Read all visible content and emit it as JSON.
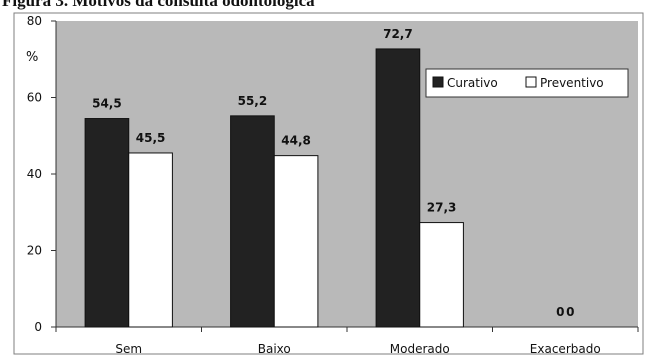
{
  "figure": {
    "title_bold": "Figura 3.",
    "title_rest": " Motivos da consulta odontológica"
  },
  "chart_data": {
    "type": "bar",
    "categories": [
      "Sem",
      "Baixo",
      "Moderado",
      "Exacerbado"
    ],
    "series": [
      {
        "name": "Curativo",
        "values": [
          54.5,
          55.2,
          72.7,
          0
        ],
        "labels": [
          "54,5",
          "55,2",
          "72,7",
          "0"
        ],
        "color": "#222222"
      },
      {
        "name": "Preventivo",
        "values": [
          45.5,
          44.8,
          27.3,
          0
        ],
        "labels": [
          "45,5",
          "44,8",
          "27,3",
          "0"
        ],
        "color": "#ffffff"
      }
    ],
    "yticks": [
      0,
      20,
      40,
      60,
      80
    ],
    "ylim": [
      0,
      80
    ],
    "ylabel": "%",
    "xlabel": "",
    "grid": false,
    "legend_position": "top-right",
    "plot_background": "#b9b9b9",
    "border_color": "#7f7f7f"
  }
}
